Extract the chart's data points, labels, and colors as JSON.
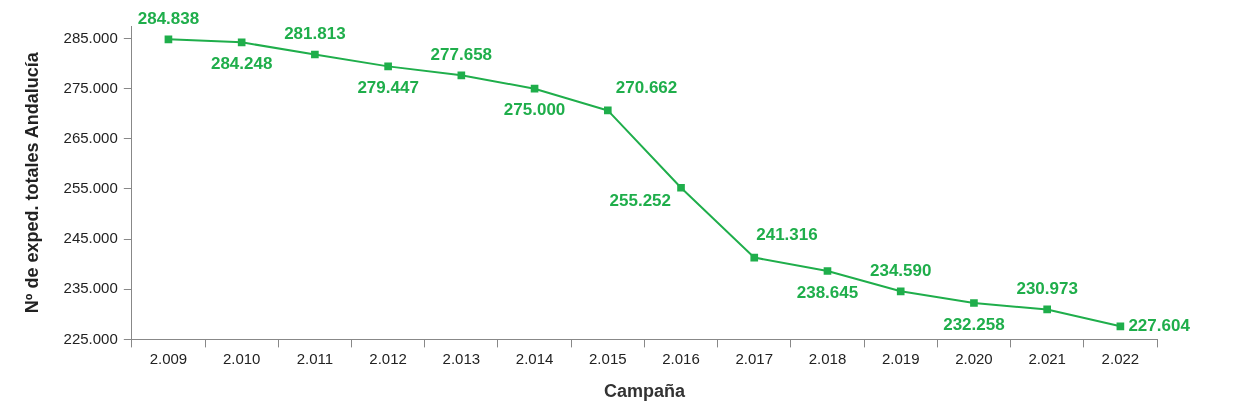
{
  "chart_data": {
    "type": "line",
    "xlabel": "Campaña",
    "ylabel": "Nº de exped. totales Andalucía",
    "categories": [
      "2.009",
      "2.010",
      "2.011",
      "2.012",
      "2.013",
      "2.014",
      "2.015",
      "2.016",
      "2.017",
      "2.018",
      "2.019",
      "2.020",
      "2.021",
      "2.022"
    ],
    "series": [
      {
        "color": "#1fae4b",
        "values": [
          284838,
          284248,
          281813,
          279447,
          277658,
          275000,
          270662,
          255252,
          241316,
          238645,
          234590,
          232258,
          230973,
          227604
        ],
        "value_labels": [
          "284.838",
          "284.248",
          "281.813",
          "279.447",
          "277.658",
          "275.000",
          "270.662",
          "255.252",
          "241.316",
          "238.645",
          "234.590",
          "232.258",
          "230.973",
          "227.604"
        ]
      }
    ],
    "ylim": [
      225000,
      287500
    ],
    "yticks": [
      {
        "value": 225000,
        "label": "225.000"
      },
      {
        "value": 235000,
        "label": "235.000"
      },
      {
        "value": 245000,
        "label": "245.000"
      },
      {
        "value": 255000,
        "label": "255.000"
      },
      {
        "value": 265000,
        "label": "265.000"
      },
      {
        "value": 275000,
        "label": "275.000"
      },
      {
        "value": 285000,
        "label": "285.000"
      }
    ],
    "grid": false,
    "legend": false,
    "marker": "square",
    "line_style": "solid"
  }
}
